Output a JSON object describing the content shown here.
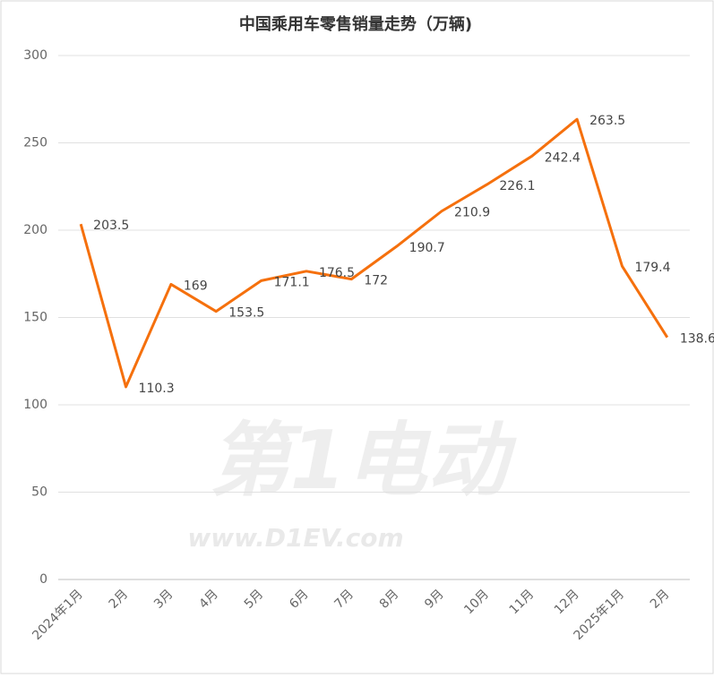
{
  "chart_data": {
    "type": "line",
    "title": "中国乘用车零售销量走势（万辆)",
    "categories": [
      "2024年1月",
      "2月",
      "3月",
      "4月",
      "5月",
      "6月",
      "7月",
      "8月",
      "9月",
      "10月",
      "11月",
      "12月",
      "2025年1月",
      "2月"
    ],
    "series": [
      {
        "name": "零售销量",
        "color": "#f5700d",
        "values": [
          203.5,
          110.3,
          169,
          153.5,
          171.1,
          176.5,
          172,
          190.7,
          210.9,
          226.1,
          242.4,
          263.5,
          179.4,
          138.6
        ]
      }
    ],
    "ylim": [
      0,
      300
    ],
    "yticks": [
      0,
      50,
      100,
      150,
      200,
      250,
      300
    ],
    "grid": true,
    "watermark": [
      "第1电动",
      "www.D1EV.com"
    ]
  }
}
